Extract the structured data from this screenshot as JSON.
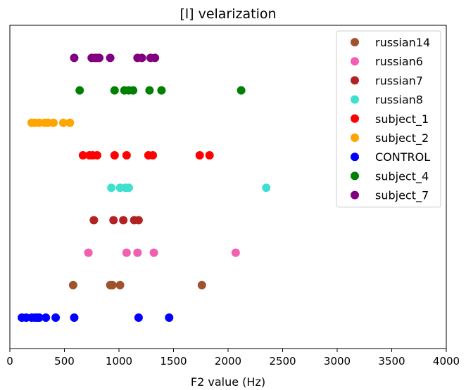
{
  "chart_data": {
    "type": "scatter",
    "title": "[l] velarization",
    "xlabel": "F2 value (Hz)",
    "ylabel": "",
    "xlim": [
      0,
      4000
    ],
    "xticks": [
      0,
      500,
      1000,
      1500,
      2000,
      2500,
      3000,
      3500,
      4000
    ],
    "grid": false,
    "legend_position": "top-right",
    "series": [
      {
        "name": "russian14",
        "color": "#a0522d",
        "values": [
          580,
          920,
          940,
          1010,
          1760
        ]
      },
      {
        "name": "russian6",
        "color": "#f25fb0",
        "values": [
          720,
          1070,
          1170,
          1320,
          2070
        ]
      },
      {
        "name": "russian7",
        "color": "#b22222",
        "values": [
          770,
          950,
          1040,
          1140,
          1180
        ]
      },
      {
        "name": "russian8",
        "color": "#40e0d0",
        "values": [
          930,
          1010,
          1060,
          1090,
          2350
        ]
      },
      {
        "name": "subject_1",
        "color": "#ff0000",
        "values": [
          670,
          730,
          760,
          800,
          960,
          1070,
          1270,
          1310,
          1740,
          1830
        ]
      },
      {
        "name": "subject_2",
        "color": "#ffa500",
        "values": [
          200,
          230,
          270,
          320,
          350,
          400,
          490,
          550
        ]
      },
      {
        "name": "CONTROL",
        "color": "#0000ff",
        "values": [
          110,
          150,
          200,
          230,
          250,
          270,
          330,
          420,
          590,
          1180,
          1460
        ]
      },
      {
        "name": "subject_4",
        "color": "#008000",
        "values": [
          640,
          960,
          1050,
          1090,
          1130,
          1280,
          1390,
          2120
        ]
      },
      {
        "name": "subject_7",
        "color": "#800080",
        "values": [
          590,
          750,
          780,
          800,
          820,
          920,
          1170,
          1210,
          1290,
          1330
        ]
      }
    ],
    "plot_order": [
      "CONTROL",
      "russian14",
      "russian6",
      "russian7",
      "russian8",
      "subject_1",
      "subject_2",
      "subject_4",
      "subject_7"
    ]
  }
}
